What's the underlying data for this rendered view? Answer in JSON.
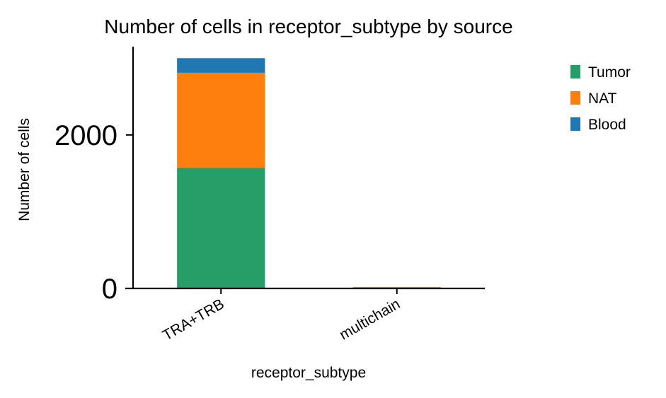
{
  "chart_data": {
    "type": "bar",
    "stacked": true,
    "title": "Number of cells in receptor_subtype by source",
    "xlabel": "receptor_subtype",
    "ylabel": "Number of cells",
    "categories": [
      "TRA+TRB",
      "multichain"
    ],
    "yticks": [
      0,
      2000
    ],
    "ylim": [
      0,
      3150
    ],
    "series": [
      {
        "name": "Tumor",
        "color": "#279e68",
        "values": [
          1570,
          8
        ]
      },
      {
        "name": "NAT",
        "color": "#ff7f0e",
        "values": [
          1240,
          7
        ]
      },
      {
        "name": "Blood",
        "color": "#1f77b4",
        "values": [
          190,
          2
        ]
      }
    ],
    "legend": {
      "position": "right-top",
      "order": [
        "Tumor",
        "NAT",
        "Blood"
      ]
    },
    "grid": false
  }
}
